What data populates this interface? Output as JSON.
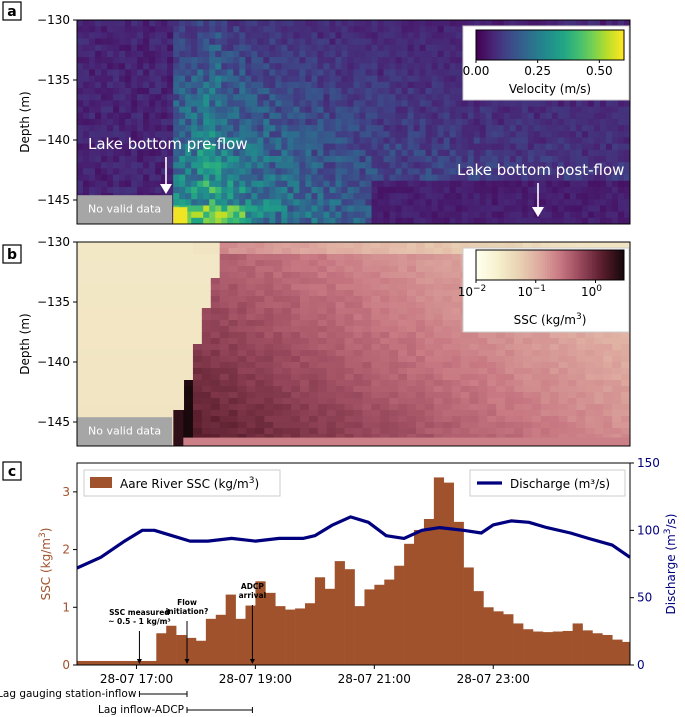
{
  "chart_data": [
    {
      "panel": "a",
      "type": "heatmap",
      "ylabel": "Depth (m)",
      "y_ticks": [
        "−130",
        "−135",
        "−140",
        "−145"
      ],
      "ylim": [
        -147,
        -130
      ],
      "colorbar": {
        "label": "Velocity (m/s)",
        "ticks": [
          "0.00",
          "0.25",
          "0.50"
        ],
        "scale": "linear",
        "range": [
          0,
          0.6
        ]
      },
      "annotations": {
        "pre_flow": "Lake bottom pre-flow",
        "post_flow": "Lake bottom post-flow",
        "no_data": "No valid data"
      }
    },
    {
      "panel": "b",
      "type": "heatmap",
      "ylabel": "Depth (m)",
      "y_ticks": [
        "−130",
        "−135",
        "−140",
        "−145"
      ],
      "ylim": [
        -147,
        -130
      ],
      "colorbar": {
        "label_main": "SSC (kg/m",
        "label_exp": "3",
        "label_end": ")",
        "scale": "log",
        "range": [
          0.01,
          3
        ],
        "ticks": [
          {
            "base": "10",
            "exp": "−2"
          },
          {
            "base": "10",
            "exp": "−1"
          },
          {
            "base": "10",
            "exp": "0"
          }
        ]
      },
      "annotations": {
        "no_data": "No valid data"
      }
    },
    {
      "panel": "c",
      "type": "bar+line",
      "x_ticks": [
        "28-07 17:00",
        "28-07 19:00",
        "28-07 21:00",
        "28-07 23:00"
      ],
      "left_axis": {
        "label_main": "SSC (kg/m",
        "label_exp": "3",
        "label_end": ")",
        "ylim": [
          0,
          3.5
        ],
        "ticks": [
          "0",
          "1",
          "2",
          "3"
        ],
        "color": "#a0522d"
      },
      "right_axis": {
        "label_main": "Discharge (m",
        "label_exp": "3",
        "label_end": "/s)",
        "ylim": [
          0,
          150
        ],
        "ticks": [
          "0",
          "50",
          "100",
          "150"
        ],
        "color": "#00007f"
      },
      "bar_series": {
        "name_main": "Aare River SSC (kg/m",
        "name_exp": "3",
        "name_end": ")",
        "color": "#a0522d",
        "start_hour": 16.0,
        "bin_hours": 0.1667,
        "values": [
          0.07,
          0.07,
          0.07,
          0.07,
          0.07,
          0.07,
          0.07,
          0.07,
          0.55,
          0.68,
          0.52,
          0.47,
          0.42,
          0.8,
          0.87,
          1.22,
          0.8,
          1.03,
          1.45,
          1.25,
          1.02,
          0.96,
          0.98,
          1.07,
          1.52,
          1.32,
          1.8,
          1.66,
          1.02,
          1.31,
          1.39,
          1.48,
          1.72,
          2.1,
          2.34,
          2.53,
          3.25,
          3.16,
          2.48,
          1.69,
          1.28,
          1.0,
          0.93,
          0.88,
          0.72,
          0.62,
          0.58,
          0.57,
          0.58,
          0.59,
          0.72,
          0.6,
          0.55,
          0.52,
          0.44,
          0.4,
          0.35,
          0.34,
          0.35,
          0.36,
          0.38
        ]
      },
      "line_series": {
        "name": "Discharge (m³/s)",
        "color": "#00007f",
        "points": [
          [
            16.0,
            72
          ],
          [
            16.4,
            80
          ],
          [
            16.8,
            92
          ],
          [
            17.1,
            100
          ],
          [
            17.3,
            100
          ],
          [
            17.6,
            96
          ],
          [
            17.9,
            92
          ],
          [
            18.2,
            92
          ],
          [
            18.6,
            94
          ],
          [
            19.0,
            92
          ],
          [
            19.4,
            94
          ],
          [
            19.8,
            94
          ],
          [
            20.0,
            96
          ],
          [
            20.3,
            104
          ],
          [
            20.6,
            110
          ],
          [
            20.9,
            106
          ],
          [
            21.2,
            96
          ],
          [
            21.5,
            94
          ],
          [
            21.8,
            100
          ],
          [
            22.1,
            102
          ],
          [
            22.5,
            100
          ],
          [
            22.8,
            98
          ],
          [
            23.0,
            104
          ],
          [
            23.3,
            107
          ],
          [
            23.6,
            106
          ],
          [
            23.9,
            102
          ],
          [
            24.3,
            98
          ],
          [
            24.6,
            94
          ],
          [
            25.0,
            89
          ],
          [
            25.3,
            80
          ]
        ]
      },
      "event_annotations": [
        {
          "hour": 17.05,
          "lines": [
            "SSC measured",
            "~ 0.5 - 1 kg/m³"
          ]
        },
        {
          "hour": 17.85,
          "lines": [
            "Flow",
            "initiation?"
          ]
        },
        {
          "hour": 18.95,
          "lines": [
            "ADCP",
            "arrival"
          ]
        }
      ],
      "lag_bars": [
        {
          "label": "Lag gauging station-inflow",
          "from": 17.05,
          "to": 17.85
        },
        {
          "label": "Lag inflow-ADCP",
          "from": 17.85,
          "to": 18.95
        }
      ]
    }
  ],
  "labels": {
    "panel_a": "a",
    "panel_b": "b",
    "panel_c": "c"
  }
}
